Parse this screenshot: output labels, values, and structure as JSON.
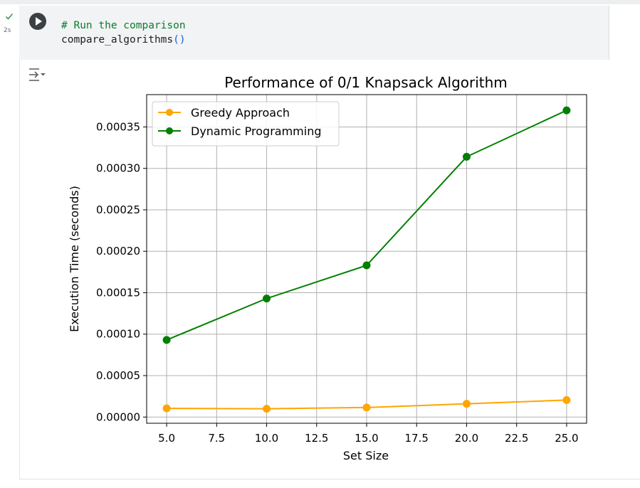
{
  "cell": {
    "execution_time": "2s",
    "status": "success",
    "code_comment": "# Run the comparison",
    "code_call_name": "compare_algorithms",
    "code_call_parens": "()"
  },
  "chart_data": {
    "type": "line",
    "title": "Performance of 0/1 Knapsack Algorithm",
    "xlabel": "Set Size",
    "ylabel": "Execution Time (seconds)",
    "x": [
      5.0,
      10.0,
      15.0,
      20.0,
      25.0
    ],
    "series": [
      {
        "name": "Greedy Approach",
        "color": "#ffa500",
        "values": [
          1.05e-05,
          1e-05,
          1.15e-05,
          1.6e-05,
          2.05e-05
        ]
      },
      {
        "name": "Dynamic Programming",
        "color": "#008000",
        "values": [
          9.3e-05,
          0.000143,
          0.000183,
          0.000314,
          0.00037
        ]
      }
    ],
    "xlim": [
      4.0,
      26.0
    ],
    "ylim": [
      -7.5e-06,
      0.000389
    ],
    "xticks": [
      "5.0",
      "7.5",
      "10.0",
      "12.5",
      "15.0",
      "17.5",
      "20.0",
      "22.5",
      "25.0"
    ],
    "xtick_values": [
      5.0,
      7.5,
      10.0,
      12.5,
      15.0,
      17.5,
      20.0,
      22.5,
      25.0
    ],
    "yticks": [
      "0.00000",
      "0.00005",
      "0.00010",
      "0.00015",
      "0.00020",
      "0.00025",
      "0.00030",
      "0.00035"
    ],
    "ytick_values": [
      0.0,
      5e-05,
      0.0001,
      0.00015,
      0.0002,
      0.00025,
      0.0003,
      0.00035
    ],
    "grid": true,
    "legend_position": "upper-left",
    "markers": "circle"
  }
}
